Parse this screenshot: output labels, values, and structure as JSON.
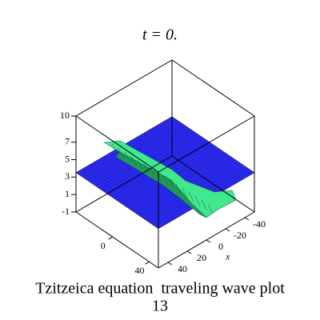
{
  "chart_data": {
    "type": "surface",
    "title": "t = 0.",
    "xlabel": "x",
    "xlim": [
      50,
      -50
    ],
    "xticks": [
      40,
      20,
      0,
      -20,
      -40
    ],
    "ylim": [
      50,
      -40
    ],
    "yticks": [
      40,
      0
    ],
    "zlim": [
      -1,
      10
    ],
    "zticks": [
      10,
      7,
      5,
      3,
      1,
      -1
    ],
    "caption": [
      "Tzitzeica equation  traveling wave plot",
      "13"
    ]
  }
}
